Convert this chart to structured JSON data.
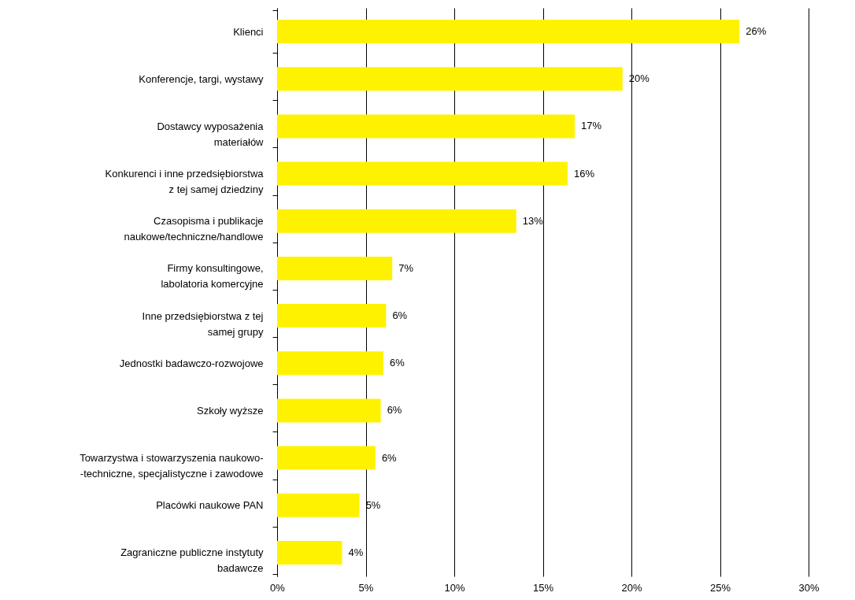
{
  "chart_data": {
    "type": "bar",
    "orientation": "horizontal",
    "categories": [
      "Klienci",
      "Konferencje, targi, wystawy",
      "Dostawcy wyposażenia\nmateriałów",
      "Konkurenci i inne przedsiębiorstwa\nz tej samej dziedziny",
      "Czasopisma i publikacje\nnaukowe/techniczne/handlowe",
      "Firmy konsultingowe,\nlabolatoria komercyjne",
      "Inne przedsiębiorstwa z tej\nsamej grupy",
      "Jednostki badawczo-rozwojowe",
      "Szkoły wyższe",
      "Towarzystwa  i stowarzyszenia naukowo-\n-techniczne, specjalistyczne i zawodowe",
      "Placówki naukowe PAN",
      "Zagraniczne publiczne instytuty\nbadawcze"
    ],
    "values": [
      26.1,
      19.5,
      16.8,
      16.4,
      13.5,
      6.5,
      6.15,
      6.0,
      5.85,
      5.55,
      4.65,
      3.67
    ],
    "value_labels": [
      "26%",
      "20%",
      "17%",
      "16%",
      "13%",
      "7%",
      "6%",
      "6%",
      "6%",
      "6%",
      "5%",
      "4%"
    ],
    "color": "#fff200",
    "xlim": [
      0,
      30
    ],
    "xticks": [
      {
        "value": 0,
        "label": "0%"
      },
      {
        "value": 5,
        "label": "5%"
      },
      {
        "value": 10,
        "label": "10%"
      },
      {
        "value": 15,
        "label": "15%"
      },
      {
        "value": 20,
        "label": "20%"
      },
      {
        "value": 25,
        "label": "25%"
      },
      {
        "value": 30,
        "label": "30%"
      }
    ],
    "grid": "x"
  }
}
